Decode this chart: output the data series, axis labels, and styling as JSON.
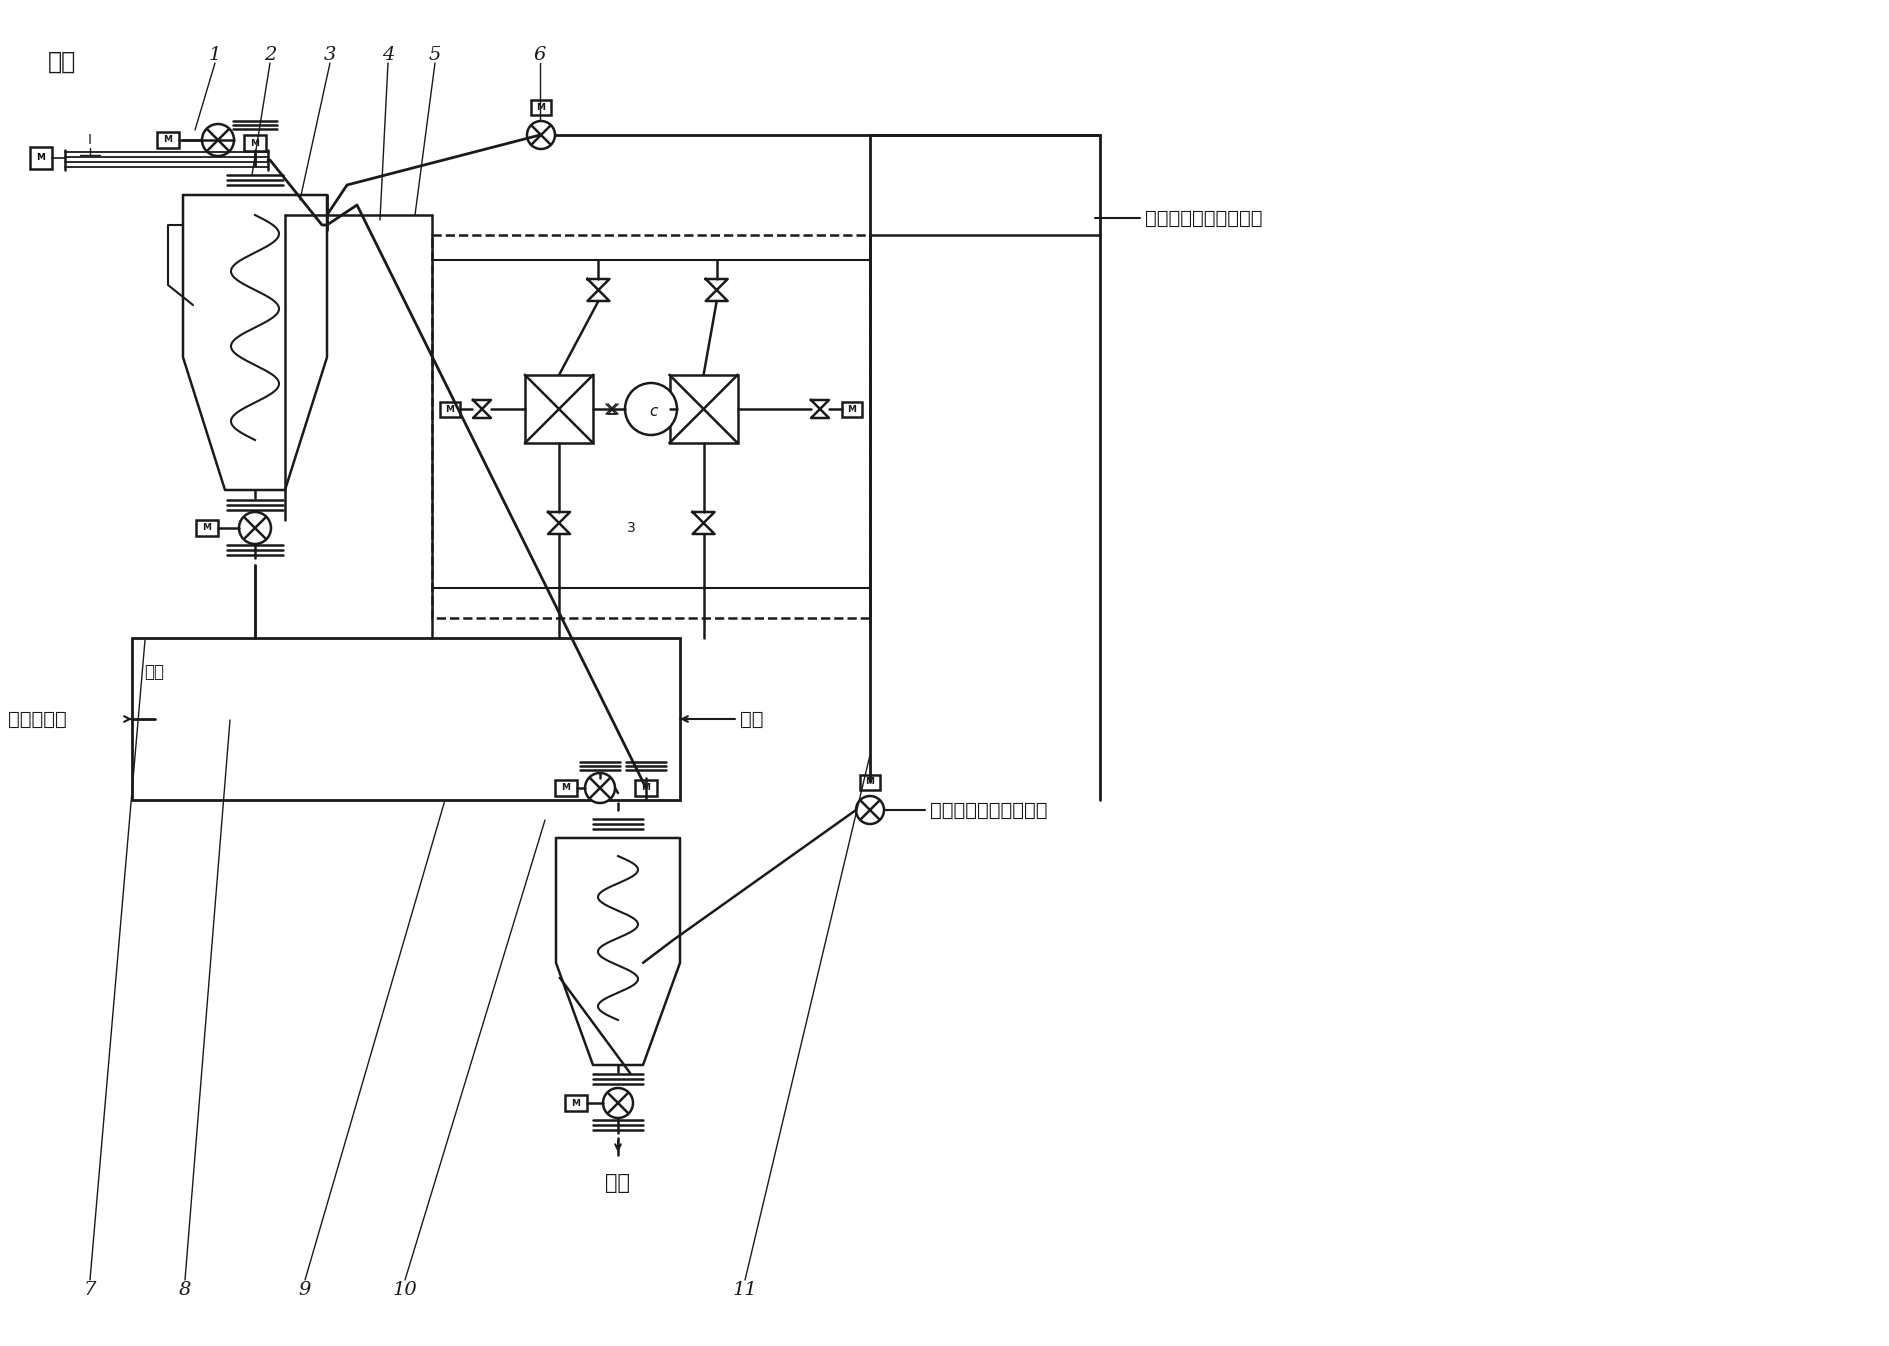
{
  "bg": "#ffffff",
  "lc": "#1a1a1a",
  "lw": 1.8,
  "labels": {
    "jinliao": "进料",
    "fanchui": "反吹热氮气",
    "relai": "热源",
    "jucuo": "机座",
    "chuliao": "出料",
    "lengque1": "冷却、回收、减压系统",
    "lengque2": "冷却、回收、减压系统"
  },
  "top_nums": [
    [
      "1",
      215,
      55
    ],
    [
      "2",
      270,
      55
    ],
    [
      "3",
      330,
      55
    ],
    [
      "4",
      388,
      55
    ],
    [
      "5",
      435,
      55
    ],
    [
      "6",
      540,
      55
    ]
  ],
  "bot_nums": [
    [
      "7",
      90,
      1290
    ],
    [
      "8",
      185,
      1290
    ],
    [
      "9",
      305,
      1290
    ],
    [
      "10",
      405,
      1290
    ],
    [
      "11",
      745,
      1290
    ]
  ]
}
